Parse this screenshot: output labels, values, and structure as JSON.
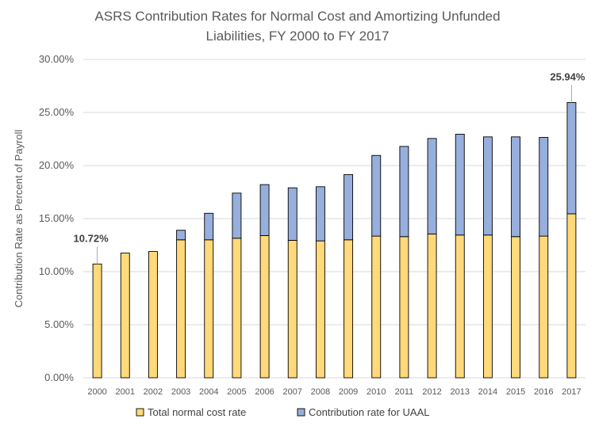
{
  "chart_data": {
    "type": "bar",
    "stacked": true,
    "title_line1": "ASRS Contribution Rates for Normal Cost and Amortizing Unfunded",
    "title_line2": "Liabilities, FY 2000 to FY 2017",
    "xlabel": "",
    "ylabel": "Contribution Rate as Percent of Payroll",
    "ylim": [
      0,
      30
    ],
    "yticks": [
      "0.00%",
      "5.00%",
      "10.00%",
      "15.00%",
      "20.00%",
      "25.00%",
      "30.00%"
    ],
    "categories": [
      "2000",
      "2001",
      "2002",
      "2003",
      "2004",
      "2005",
      "2006",
      "2007",
      "2008",
      "2009",
      "2010",
      "2011",
      "2012",
      "2013",
      "2014",
      "2015",
      "2016",
      "2017"
    ],
    "series": [
      {
        "name": "Total normal cost rate",
        "color": "#FFD97A",
        "values": [
          10.72,
          11.75,
          11.9,
          13.0,
          13.0,
          13.15,
          13.4,
          12.95,
          12.9,
          13.0,
          13.35,
          13.3,
          13.55,
          13.45,
          13.45,
          13.3,
          13.35,
          15.45
        ]
      },
      {
        "name": "Contribution rate for UAAL",
        "color": "#97AFDC",
        "values": [
          0,
          0,
          0,
          0.9,
          2.5,
          4.25,
          4.8,
          4.95,
          5.1,
          6.15,
          7.6,
          8.5,
          9.0,
          9.5,
          9.25,
          9.4,
          9.3,
          10.49
        ]
      }
    ],
    "annotations": [
      {
        "category": "2000",
        "text": "10.72%"
      },
      {
        "category": "2017",
        "text": "25.94%"
      }
    ],
    "grid": true,
    "legend_position": "bottom"
  }
}
